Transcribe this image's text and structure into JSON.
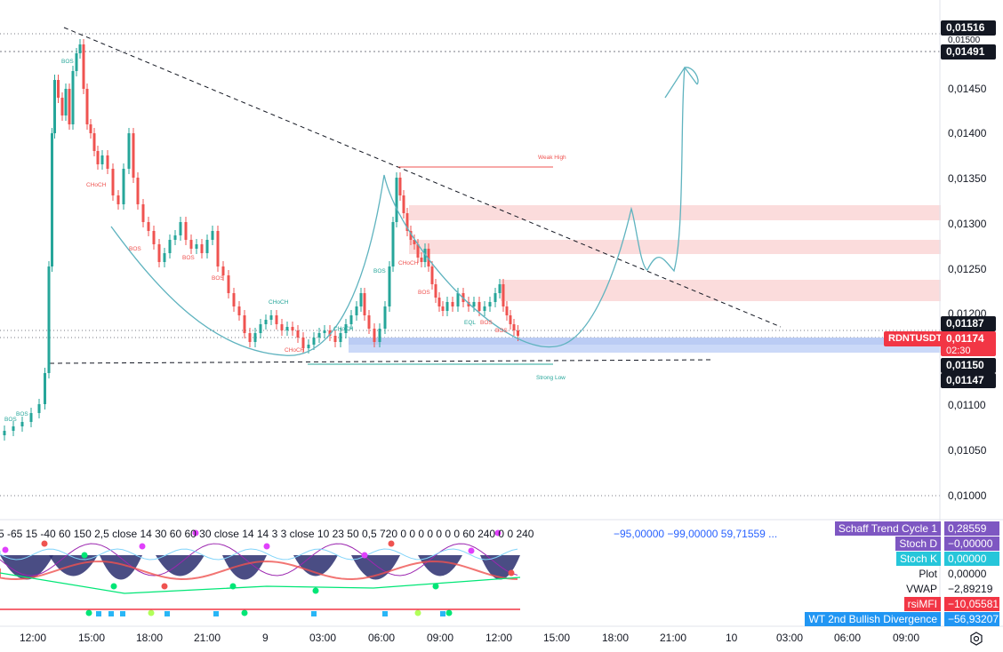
{
  "symbol": "RDNTUSDT",
  "price_axis": {
    "ticks": [
      "0,01450",
      "0,01400",
      "0,01350",
      "0,01300",
      "0,01250",
      "0,01200",
      "0,01100",
      "0,01050",
      "0,01000"
    ],
    "badges": {
      "top_high": "0,01516",
      "partial": "0,01500",
      "high_line": "0,01491",
      "upper_box": "0,01187",
      "current": "0,01174",
      "countdown": "02:30",
      "lower_box": "0,01150",
      "low_line": "0,01147"
    }
  },
  "time_axis": [
    "12:00",
    "15:00",
    "18:00",
    "21:00",
    "9",
    "03:00",
    "06:00",
    "09:00",
    "12:00",
    "15:00",
    "18:00",
    "21:00",
    "10",
    "03:00",
    "06:00",
    "09:00"
  ],
  "annotations": {
    "bos": "BOS",
    "choch": "CHoCH",
    "eql": "EQL",
    "weak_high": "Weak High",
    "strong_low": "Strong Low"
  },
  "indicator": {
    "params": "5 -65 15 -40 60 150 2,5 close 14 30 60 60 30 close 14 14 3 3 close 10 23 50 0,5 720 0 0 0 0 0 0 0 60 240 0 0 240",
    "values": "−95,00000  −99,00000  59,71559  ...",
    "legend": [
      {
        "name": "Schaff Trend Cycle 1",
        "value": "0,28559",
        "color": "#7e57c2"
      },
      {
        "name": "Stoch D",
        "value": "−0,00000",
        "color": "#7e57c2"
      },
      {
        "name": "Stoch K",
        "value": "0,00000",
        "color": "#26c6da"
      },
      {
        "name": "Plot",
        "value": "0,00000",
        "color": ""
      },
      {
        "name": "VWAP",
        "value": "−2,89219",
        "color": ""
      },
      {
        "name": "rsiMFI",
        "value": "−10,05581",
        "color": "#f23645"
      },
      {
        "name": "WT 2nd Bullish Divergence",
        "value": "−56,93207",
        "color": "#2196f3"
      }
    ]
  },
  "colors": {
    "up_candle": "#26a69a",
    "down_candle": "#ef5350",
    "zone_red": "#fbdcdc",
    "zone_blue": "#c5d5f7",
    "curve": "#5fb3bf"
  },
  "icons": {
    "settings": "gear-icon"
  }
}
